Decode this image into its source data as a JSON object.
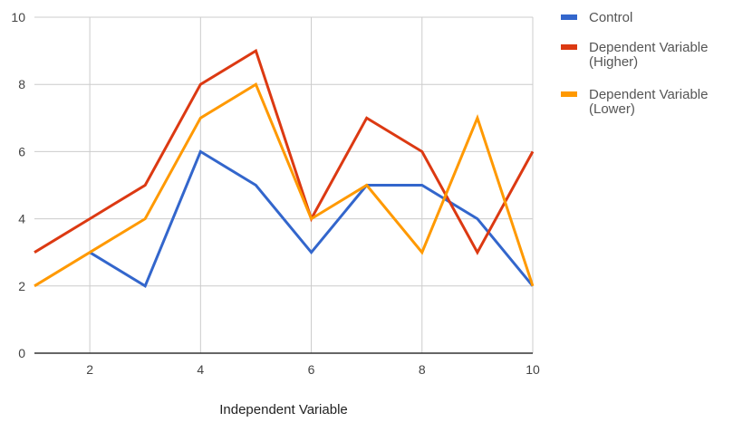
{
  "chart_data": {
    "type": "line",
    "title": "",
    "xlabel": "Independent Variable",
    "ylabel": "",
    "x": [
      1,
      2,
      3,
      4,
      5,
      6,
      7,
      8,
      9,
      10
    ],
    "xlim": [
      1,
      10
    ],
    "ylim": [
      0,
      10
    ],
    "xticks": [
      2,
      4,
      6,
      8,
      10
    ],
    "yticks": [
      0,
      2,
      4,
      6,
      8,
      10
    ],
    "grid": true,
    "legend_position": "right",
    "series": [
      {
        "name": "Control",
        "label_lines": [
          "Control"
        ],
        "color": "#3366cc",
        "values": [
          null,
          3,
          2,
          6,
          5,
          3,
          5,
          5,
          4,
          2
        ]
      },
      {
        "name": "Dependent Variable (Higher)",
        "label_lines": [
          "Dependent Variable",
          "(Higher)"
        ],
        "color": "#dc3912",
        "values": [
          3,
          4,
          5,
          8,
          9,
          4,
          7,
          6,
          3,
          6
        ]
      },
      {
        "name": "Dependent Variable (Lower)",
        "label_lines": [
          "Dependent Variable",
          "(Lower)"
        ],
        "color": "#ff9900",
        "values": [
          2,
          3,
          4,
          7,
          8,
          4,
          5,
          3,
          7,
          2
        ]
      }
    ]
  }
}
